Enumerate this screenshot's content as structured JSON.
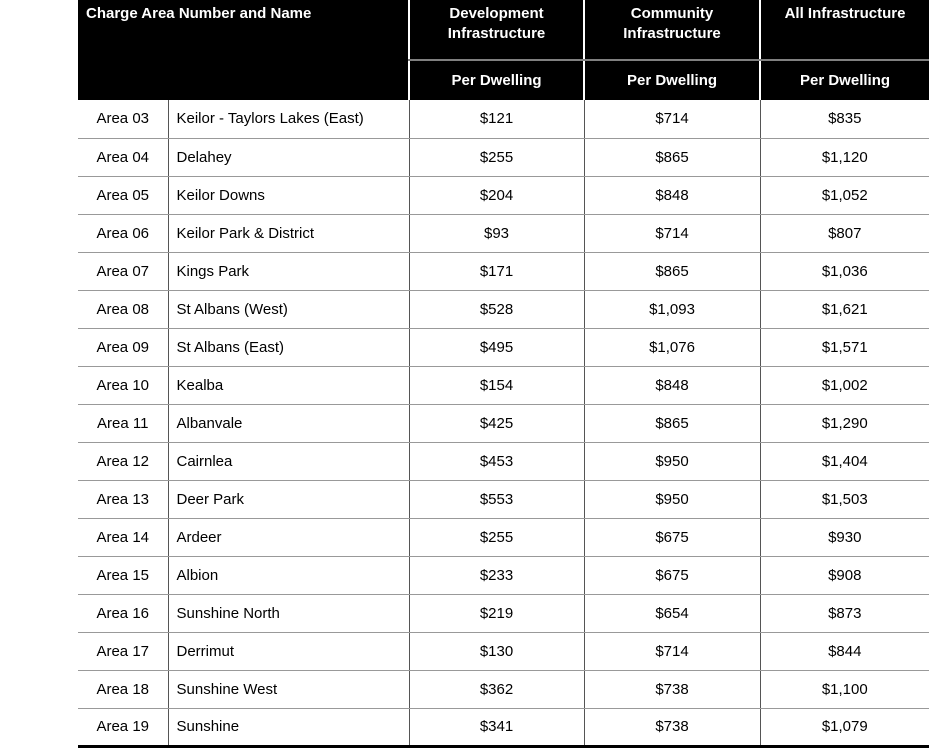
{
  "table": {
    "header": {
      "charge_area_label": "Charge Area Number and Name",
      "columns": [
        {
          "label": "Development Infrastructure",
          "sublabel": "Per Dwelling"
        },
        {
          "label": "Community Infrastructure",
          "sublabel": "Per Dwelling"
        },
        {
          "label": "All Infrastructure",
          "sublabel": "Per Dwelling"
        }
      ]
    },
    "rows": [
      {
        "area": "Area 03",
        "name": "Keilor - Taylors Lakes (East)",
        "development": "$121",
        "community": "$714",
        "all": "$835"
      },
      {
        "area": "Area 04",
        "name": "Delahey",
        "development": "$255",
        "community": "$865",
        "all": "$1,120"
      },
      {
        "area": "Area 05",
        "name": "Keilor Downs",
        "development": "$204",
        "community": "$848",
        "all": "$1,052"
      },
      {
        "area": "Area 06",
        "name": "Keilor Park & District",
        "development": "$93",
        "community": "$714",
        "all": "$807"
      },
      {
        "area": "Area 07",
        "name": "Kings Park",
        "development": "$171",
        "community": "$865",
        "all": "$1,036"
      },
      {
        "area": "Area 08",
        "name": "St Albans (West)",
        "development": "$528",
        "community": "$1,093",
        "all": "$1,621"
      },
      {
        "area": "Area 09",
        "name": "St Albans (East)",
        "development": "$495",
        "community": "$1,076",
        "all": "$1,571"
      },
      {
        "area": "Area 10",
        "name": "Kealba",
        "development": "$154",
        "community": "$848",
        "all": "$1,002"
      },
      {
        "area": "Area 11",
        "name": "Albanvale",
        "development": "$425",
        "community": "$865",
        "all": "$1,290"
      },
      {
        "area": "Area 12",
        "name": "Cairnlea",
        "development": "$453",
        "community": "$950",
        "all": "$1,404"
      },
      {
        "area": "Area 13",
        "name": "Deer Park",
        "development": "$553",
        "community": "$950",
        "all": "$1,503"
      },
      {
        "area": "Area 14",
        "name": "Ardeer",
        "development": "$255",
        "community": "$675",
        "all": "$930"
      },
      {
        "area": "Area 15",
        "name": "Albion",
        "development": "$233",
        "community": "$675",
        "all": "$908"
      },
      {
        "area": "Area 16",
        "name": "Sunshine North",
        "development": "$219",
        "community": "$654",
        "all": "$873"
      },
      {
        "area": "Area 17",
        "name": "Derrimut",
        "development": "$130",
        "community": "$714",
        "all": "$844"
      },
      {
        "area": "Area 18",
        "name": "Sunshine West",
        "development": "$362",
        "community": "$738",
        "all": "$1,100"
      },
      {
        "area": "Area 19",
        "name": "Sunshine",
        "development": "$341",
        "community": "$738",
        "all": "$1,079"
      }
    ]
  },
  "colors": {
    "header_bg": "#000000",
    "header_text": "#ffffff",
    "body_text": "#000000",
    "row_border": "#999999",
    "column_border": "#555555",
    "header_divider": "#808080",
    "header_separator": "#ffffff",
    "bottom_border": "#000000"
  }
}
